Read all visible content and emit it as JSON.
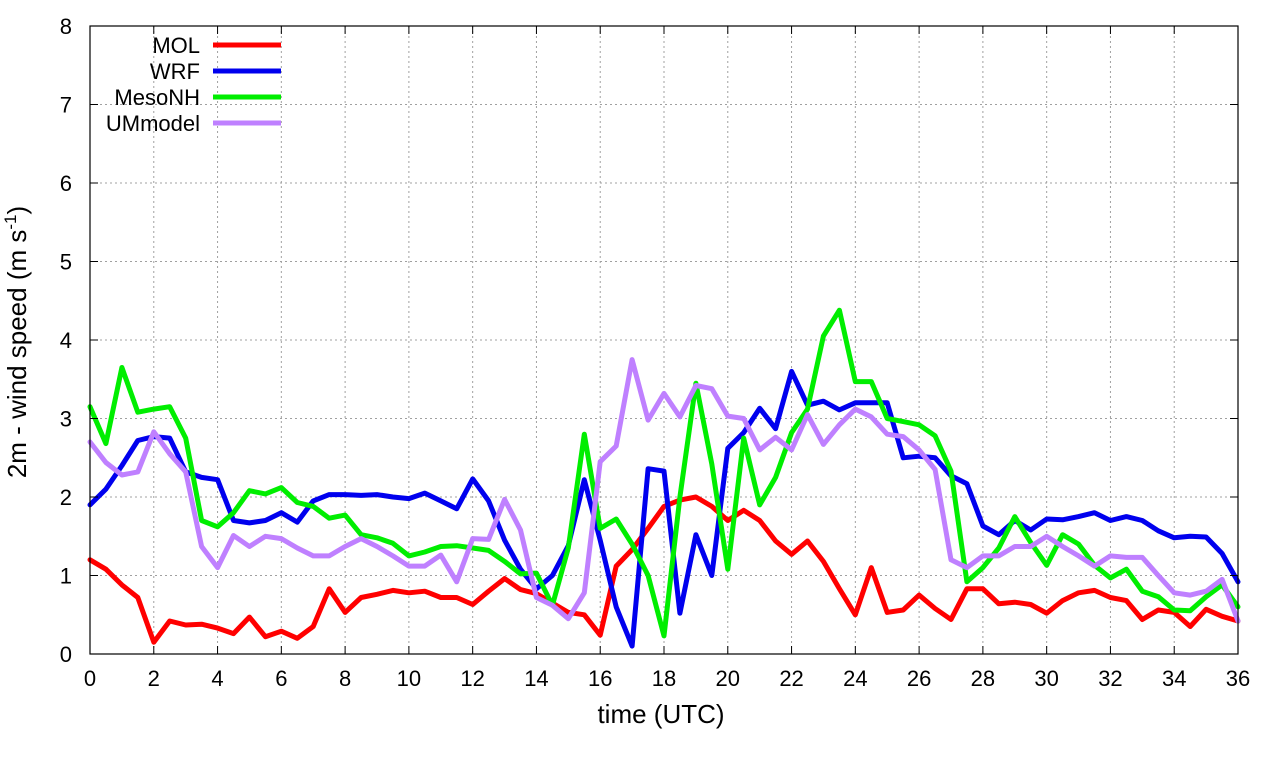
{
  "chart_data": {
    "type": "line",
    "title": "",
    "xlabel": "time (UTC)",
    "ylabel": {
      "prefix": "2m - wind speed  (m s",
      "exponent": "-1",
      "suffix": ")"
    },
    "xlim": [
      0,
      36
    ],
    "ylim": [
      0,
      8
    ],
    "xticks": [
      0,
      2,
      4,
      6,
      8,
      10,
      12,
      14,
      16,
      18,
      20,
      22,
      24,
      26,
      28,
      30,
      32,
      34,
      36
    ],
    "yticks": [
      0,
      1,
      2,
      3,
      4,
      5,
      6,
      7,
      8
    ],
    "grid": true,
    "legend_position": "top-left",
    "series": [
      {
        "name": "MOL",
        "color": "#ff0000",
        "x": [
          0,
          0.5,
          1,
          1.5,
          2,
          2.5,
          3,
          3.5,
          4,
          4.5,
          5,
          5.5,
          6,
          6.5,
          7,
          7.5,
          8,
          8.5,
          9,
          9.5,
          10,
          10.5,
          11,
          11.5,
          12,
          12.5,
          13,
          13.5,
          14,
          14.5,
          15,
          15.5,
          16,
          16.5,
          17,
          17.5,
          18,
          18.5,
          19,
          19.5,
          20,
          20.5,
          21,
          21.5,
          22,
          22.5,
          23,
          23.5,
          24,
          24.5,
          25,
          25.5,
          26,
          26.5,
          27,
          27.5,
          28,
          28.5,
          29,
          29.5,
          30,
          30.5,
          31,
          31.5,
          32,
          32.5,
          33,
          33.5,
          34,
          34.5,
          35,
          35.5,
          36
        ],
        "values": [
          1.2,
          1.08,
          0.88,
          0.72,
          0.15,
          0.42,
          0.37,
          0.38,
          0.33,
          0.26,
          0.47,
          0.22,
          0.29,
          0.2,
          0.35,
          0.83,
          0.53,
          0.72,
          0.76,
          0.81,
          0.78,
          0.8,
          0.72,
          0.72,
          0.63,
          0.8,
          0.96,
          0.82,
          0.77,
          0.65,
          0.53,
          0.5,
          0.24,
          1.12,
          1.33,
          1.6,
          1.88,
          1.96,
          2.0,
          1.88,
          1.7,
          1.83,
          1.7,
          1.44,
          1.27,
          1.44,
          1.18,
          0.83,
          0.5,
          1.1,
          0.53,
          0.56,
          0.75,
          0.58,
          0.44,
          0.83,
          0.83,
          0.64,
          0.66,
          0.63,
          0.52,
          0.68,
          0.78,
          0.81,
          0.72,
          0.68,
          0.44,
          0.56,
          0.53,
          0.35,
          0.57,
          0.48,
          0.42
        ]
      },
      {
        "name": "WRF",
        "color": "#0000ee",
        "x": [
          0,
          0.5,
          1,
          1.5,
          2,
          2.5,
          3,
          3.5,
          4,
          4.5,
          5,
          5.5,
          6,
          6.5,
          7,
          7.5,
          8,
          8.5,
          9,
          9.5,
          10,
          10.5,
          11,
          11.5,
          12,
          12.5,
          13,
          13.5,
          14,
          14.5,
          15,
          15.5,
          16,
          16.5,
          17,
          17.5,
          18,
          18.5,
          19,
          19.5,
          20,
          20.5,
          21,
          21.5,
          22,
          22.5,
          23,
          23.5,
          24,
          24.5,
          25,
          25.5,
          26,
          26.5,
          27,
          27.5,
          28,
          28.5,
          29,
          29.5,
          30,
          30.5,
          31,
          31.5,
          32,
          32.5,
          33,
          33.5,
          34,
          34.5,
          35,
          35.5,
          36
        ],
        "values": [
          1.9,
          2.1,
          2.4,
          2.72,
          2.77,
          2.75,
          2.32,
          2.25,
          2.22,
          1.7,
          1.67,
          1.7,
          1.8,
          1.68,
          1.95,
          2.03,
          2.03,
          2.02,
          2.03,
          2.0,
          1.98,
          2.05,
          1.95,
          1.85,
          2.23,
          1.95,
          1.45,
          1.08,
          0.83,
          1.0,
          1.38,
          2.22,
          1.45,
          0.6,
          0.1,
          2.36,
          2.33,
          0.52,
          1.52,
          1.0,
          2.62,
          2.82,
          3.13,
          2.87,
          3.6,
          3.17,
          3.22,
          3.11,
          3.2,
          3.2,
          3.2,
          2.5,
          2.52,
          2.5,
          2.27,
          2.17,
          1.63,
          1.52,
          1.7,
          1.58,
          1.72,
          1.71,
          1.75,
          1.8,
          1.7,
          1.75,
          1.7,
          1.57,
          1.48,
          1.5,
          1.49,
          1.28,
          0.92
        ]
      },
      {
        "name": "MesoNH",
        "color": "#00ee00",
        "x": [
          0,
          0.5,
          1,
          1.5,
          2,
          2.5,
          3,
          3.5,
          4,
          4.5,
          5,
          5.5,
          6,
          6.5,
          7,
          7.5,
          8,
          8.5,
          9,
          9.5,
          10,
          10.5,
          11,
          11.5,
          12,
          12.5,
          13,
          13.5,
          14,
          14.5,
          15,
          15.5,
          16,
          16.5,
          17,
          17.5,
          18,
          18.5,
          19,
          19.5,
          20,
          20.5,
          21,
          21.5,
          22,
          22.5,
          23,
          23.5,
          24,
          24.5,
          25,
          25.5,
          26,
          26.5,
          27,
          27.5,
          28,
          28.5,
          29,
          29.5,
          30,
          30.5,
          31,
          31.5,
          32,
          32.5,
          33,
          33.5,
          34,
          34.5,
          35,
          35.5,
          36
        ],
        "values": [
          3.15,
          2.68,
          3.65,
          3.08,
          3.12,
          3.15,
          2.75,
          1.7,
          1.62,
          1.8,
          2.08,
          2.04,
          2.12,
          1.93,
          1.88,
          1.73,
          1.77,
          1.52,
          1.48,
          1.41,
          1.25,
          1.3,
          1.37,
          1.38,
          1.35,
          1.32,
          1.18,
          1.02,
          1.03,
          0.62,
          1.35,
          2.8,
          1.6,
          1.72,
          1.4,
          1.0,
          0.23,
          2.0,
          3.45,
          2.42,
          1.08,
          2.75,
          1.9,
          2.25,
          2.82,
          3.12,
          4.05,
          4.38,
          3.47,
          3.47,
          3.0,
          2.96,
          2.92,
          2.78,
          2.33,
          0.92,
          1.1,
          1.35,
          1.75,
          1.42,
          1.13,
          1.52,
          1.4,
          1.13,
          0.97,
          1.08,
          0.8,
          0.73,
          0.56,
          0.55,
          0.73,
          0.88,
          0.6
        ]
      },
      {
        "name": "UMmodel",
        "color": "#bf80ff",
        "x": [
          0,
          0.5,
          1,
          1.5,
          2,
          2.5,
          3,
          3.5,
          4,
          4.5,
          5,
          5.5,
          6,
          6.5,
          7,
          7.5,
          8,
          8.5,
          9,
          9.5,
          10,
          10.5,
          11,
          11.5,
          12,
          12.5,
          13,
          13.5,
          14,
          14.5,
          15,
          15.5,
          16,
          16.5,
          17,
          17.5,
          18,
          18.5,
          19,
          19.5,
          20,
          20.5,
          21,
          21.5,
          22,
          22.5,
          23,
          23.5,
          24,
          24.5,
          25,
          25.5,
          26,
          26.5,
          27,
          27.5,
          28,
          28.5,
          29,
          29.5,
          30,
          30.5,
          31,
          31.5,
          32,
          32.5,
          33,
          33.5,
          34,
          34.5,
          35,
          35.5,
          36
        ],
        "values": [
          2.7,
          2.44,
          2.28,
          2.32,
          2.83,
          2.55,
          2.32,
          1.37,
          1.1,
          1.51,
          1.37,
          1.5,
          1.47,
          1.35,
          1.25,
          1.25,
          1.37,
          1.47,
          1.37,
          1.25,
          1.12,
          1.12,
          1.26,
          0.92,
          1.47,
          1.46,
          1.97,
          1.58,
          0.72,
          0.62,
          0.45,
          0.78,
          2.45,
          2.65,
          3.75,
          2.98,
          3.32,
          3.02,
          3.42,
          3.38,
          3.03,
          3.0,
          2.6,
          2.76,
          2.6,
          3.05,
          2.67,
          2.92,
          3.12,
          3.02,
          2.8,
          2.77,
          2.6,
          2.35,
          1.2,
          1.1,
          1.25,
          1.25,
          1.37,
          1.37,
          1.5,
          1.37,
          1.25,
          1.12,
          1.25,
          1.23,
          1.23,
          1.0,
          0.78,
          0.75,
          0.8,
          0.95,
          0.42
        ]
      }
    ]
  }
}
